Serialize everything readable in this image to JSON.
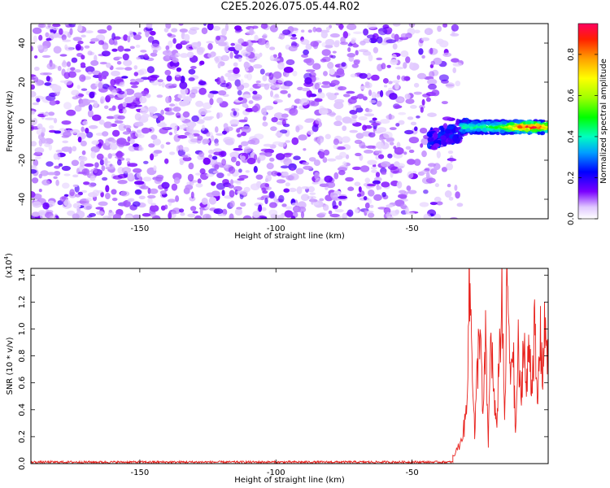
{
  "title": "C2E5.2026.075.05.44.R02",
  "colors": {
    "signal": "#ff0000",
    "spectrogram_base": "#7a00ff"
  },
  "chart_data": [
    {
      "type": "heatmap",
      "xlabel": "Height of straight line (km)",
      "ylabel": "Frequency (Hz)",
      "xlim": [
        -190,
        0
      ],
      "ylim": [
        -50,
        50
      ],
      "x_ticks": [
        -150,
        -100,
        -50
      ],
      "y_ticks": [
        -40,
        -20,
        0,
        20,
        40
      ],
      "colorbar": {
        "label": "Normalized spectral amplitude",
        "range": [
          0,
          0.95
        ],
        "ticks": [
          0.0,
          0.2,
          0.4,
          0.6,
          0.8
        ]
      },
      "features": [
        {
          "description_kind": "noise",
          "x_range": [
            -190,
            -32
          ],
          "amplitude": 0.05
        },
        {
          "description_kind": "band",
          "x_range": [
            -32,
            0
          ],
          "frequency_center": -3,
          "frequency_width": 6,
          "amplitude_peak": 0.95,
          "peak_x": -7
        }
      ]
    },
    {
      "type": "line",
      "xlabel": "Height of straight line (km)",
      "ylabel": "SNR (10 * v/v)",
      "y_multiplier_label": "(x10",
      "y_multiplier_exp": "4",
      "y_multiplier_close": ")",
      "xlim": [
        -190,
        0
      ],
      "ylim": [
        0,
        14500
      ],
      "x_ticks": [
        -150,
        -100,
        -50
      ],
      "y_ticks": [
        0.0,
        0.2,
        0.4,
        0.6,
        0.8,
        1.0,
        1.2,
        1.4
      ],
      "series": [
        {
          "noise_level": 150,
          "x_range": [
            -190,
            -35
          ],
          "rise": {
            "x": [
              -35,
              -33,
              -31,
              -30,
              -29,
              -28,
              -27,
              -26,
              -25,
              -24,
              -23,
              -22,
              -21,
              -20,
              -19,
              -18,
              -17,
              -16,
              -15,
              -14,
              -13,
              -12,
              -11,
              -10,
              -9,
              -8,
              -7,
              -6,
              -5,
              -4,
              -3,
              -2,
              -1,
              0
            ],
            "y": [
              500,
              1200,
              2500,
              4000,
              13500,
              9000,
              2000,
              7000,
              11000,
              3000,
              9000,
              1500,
              10000,
              5000,
              2500,
              8000,
              12000,
              3000,
              14300,
              6000,
              9500,
              2000,
              8500,
              4000,
              10000,
              5000,
              9000,
              6000,
              10000,
              4000,
              9500,
              7000,
              10500,
              8000
            ]
          }
        }
      ]
    }
  ],
  "axes_text": {
    "top_xlabel": "Height of straight line (km)",
    "top_ylabel": "Frequency (Hz)",
    "bottom_xlabel": "Height of straight line (km)",
    "bottom_ylabel": "SNR (10 * v/v)",
    "colorbar_label": "Normalized spectral amplitude"
  }
}
